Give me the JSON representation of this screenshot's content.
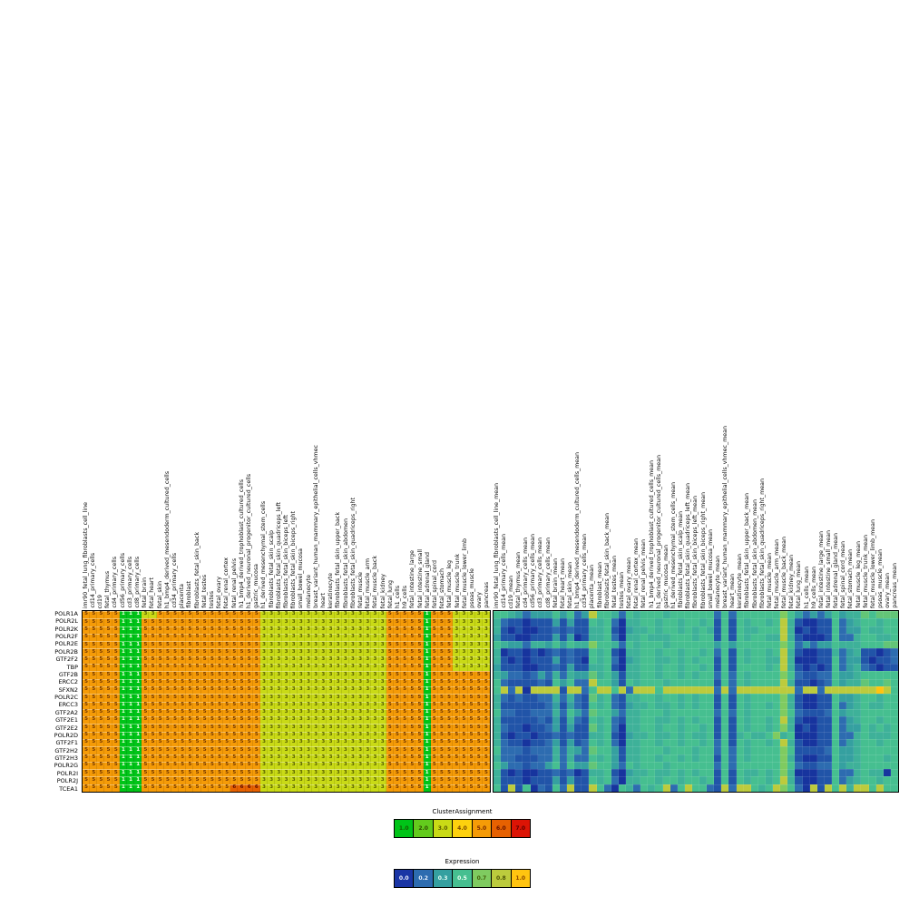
{
  "chart_data": {
    "type": "heatmap",
    "genes": [
      "POLR1A",
      "POLR2L",
      "POLR2K",
      "POLR2F",
      "POLR2E",
      "POLR2B",
      "GTF2F2",
      "TBP",
      "GTF2B",
      "ERCC2",
      "SFXN2",
      "POLR2C",
      "ERCC3",
      "GTF2A2",
      "GTF2E1",
      "GTF2E2",
      "POLR2D",
      "GTF2F1",
      "GTF2H2",
      "GTF2H3",
      "POLR2G",
      "POLR2I",
      "POLR2J",
      "TCEA1"
    ],
    "samples": [
      "imr90_fetal_lung_fibroblasts_cell_line",
      "cd14_primary_cells",
      "cd19",
      "fetal_thymus",
      "cd4_primary_cells",
      "cd56_primary_cells",
      "cd3_primary_cells",
      "cd8_primary_cells",
      "fetal_brain",
      "fetal_heart",
      "fetal_skin",
      "h1_bmp4_derived_mesendoderm_cultured_cells",
      "cd34_primary_cells",
      "placenta",
      "fibroblast",
      "fibroblasts_fetal_skin_back",
      "fetal_testes",
      "testes",
      "fetal_ovary",
      "fetal_renal_cortex",
      "fetal_renal_pelvis",
      "h1_bmp4_derived_trophoblast_cultured_cells",
      "h1_derived_neuronal_progenitor_cultured_cells",
      "gastric_mucosa",
      "h1_derived_mesenchymal_stem_cells",
      "fibroblasts_fetal_skin_scalp",
      "fibroblasts_fetal_skin_quadriceps_left",
      "fibroblasts_fetal_skin_biceps_left",
      "fibroblasts_fetal_skin_biceps_right",
      "small_bowel_mucosa",
      "melanocyte",
      "breast_variant_human_mammary_epithelial_cells_vhmec",
      "heart",
      "keratinocyte",
      "fibroblasts_fetal_skin_upper_back",
      "fibroblasts_fetal_skin_abdomen",
      "fibroblasts_fetal_skin_quadriceps_right",
      "fetal_muscle",
      "fetal_muscle_arm",
      "fetal_muscle_back",
      "fetal_kidney",
      "fetal_lung",
      "h1_cells",
      "h9_cells",
      "fetal_intestine_large",
      "fetal_intestine_small",
      "fetal_adrenal_gland",
      "fetal_spinal_cord",
      "fetal_stomach",
      "fetal_muscle_leg",
      "fetal_muscle_trunk",
      "fetal_muscle_lower_limb",
      "psoas_muscle",
      "ovary",
      "pancreas"
    ],
    "right_label_suffix": "_mean",
    "cluster_legend": {
      "title": "ClusterAssignment",
      "values": [
        "1.0",
        "2.0",
        "3.0",
        "4.0",
        "5.0",
        "6.0",
        "7.0"
      ],
      "colors": [
        "#00c418",
        "#63cb1d",
        "#c9da16",
        "#fdd10e",
        "#f59b07",
        "#e66101",
        "#dc1405"
      ],
      "text_colors": [
        "#145c00",
        "#2f4d00",
        "#5a5a00",
        "#7a4a00",
        "#7a2a00",
        "#641200",
        "#5c0000"
      ]
    },
    "expression_legend": {
      "title": "Expression",
      "values": [
        "0.0",
        "0.2",
        "0.3",
        "0.5",
        "0.7",
        "0.8",
        "1.0"
      ],
      "colors": [
        "#1a35a5",
        "#2d6cb0",
        "#35a0a0",
        "#46bf90",
        "#7fcb60",
        "#bccb3d",
        "#ffc410"
      ],
      "text_colors": [
        "#eef2ff",
        "#eaf2ff",
        "#e8fff6",
        "#ecfff4",
        "#43610a",
        "#4d5407",
        "#8a4800"
      ]
    },
    "cluster_colors": {
      "1": "#00c418",
      "2": "#63cb1d",
      "3": "#c9da16",
      "4": "#fdd10e",
      "5": "#f59b07",
      "6": "#e66101",
      "7": "#dc1405"
    },
    "cluster_text_colors": {
      "1": "#f2ffe8",
      "2": "#2f4d00",
      "3": "#565e00",
      "4": "#6e4a00",
      "5": "#6f3500",
      "6": "#5c0a00",
      "7": "#3c0000"
    },
    "cluster_matrix": [
      "5555511133555555555555553333333333333333355555155533333",
      "5555511155555555555555553333333333333333355555155533333",
      "5555511155555555555555553333333333333333355555155533333",
      "5555511155555555555555553333333333333333355555155533333",
      "5555511155555555555555553333333333333333355555155533333",
      "5555511155555555555555553333333333333333355555155533333",
      "5555511155555555555555553333333333333333355555155533333",
      "5555511155555555555555553333333333333333355555155533333",
      "5555511155555555555555553333333333333333355555155555555",
      "5555511155555555555555553333333333333333355555155555555",
      "5555511155555555555555553333333333333333355555155555555",
      "5555511155555555555555553333333333333333355555155555555",
      "5555511155555555555555553333333333333333355555155555555",
      "5555511155555555555555553333333333333333355555155555555",
      "5555511155555555555555553333333333333333355555155555555",
      "5555511155555555555555553333333333333333355555155555555",
      "5555511155555555555555553333333333333333355555155555555",
      "5555511155555555555555553333333333333333355555155555555",
      "5555511155555555555555553333333333333333355555155555555",
      "5555511155555555555555553333333333333333355555155555555",
      "5555511155555555555555553333333333333333355555155555555",
      "5555511155555555555555553333333333333333355555155555555",
      "5555511155555555555555553333333333333333355555155555555",
      "5555511155555555555566663333333333333333355555155555555"
    ],
    "expression_encoding": "one char per cell: 0-9 = value/10, A = 1.0",
    "expression_scale": {
      "0": "#17349e",
      "1": "#2154a8",
      "2": "#2d6cb0",
      "3": "#35a0a0",
      "4": "#3eb199",
      "5": "#46bf90",
      "6": "#63c577",
      "7": "#7fcb60",
      "8": "#bccb3d",
      "9": "#dfc628",
      "A": "#ffc410"
    },
    "expression_matrix": [
      "5543233353523855425455545555552525555557532323534465666",
      "4211011131311545204455455455451515455458410011523455455",
      "4101001121211445103445455454541515445558401011523354455",
      "3110011131301445204454445554551515455448410001522455445",
      "5433244353544755425455545555553535555557523233544455566",
      "4011010121211545104455455455452515455458410011423411012",
      "4101011131210545203455445454551515455448400011523310112",
      "3111001121311445104455455455451515555458410101523421011",
      "4322123242433645314455455454552525455557521122533455555",
      "5211112153522855315455545555551525455558411012534465565",
      "5828088881882588582888588888882828888888828828888888A8",
      "4212112242421645214455455454551515455557410011533455455",
      "4111111231321545213445445454551515455457410011523454455",
      "5221122242532655324455545555552525455557521112534455555",
      "4111112131421545214455445454551515455458410011523455455",
      "4211011231311645204455455455451515455457401011523354545",
      "4101101121211445103445445454451514544574500011522454445",
      "4211011231312545204455455455452515455458410011523455455",
      "5222122242432655314455545554552525455557511112533455555",
      "4221112242422545314455455454551525455557410011533455545",
      "5322122352533655325455545555552525555557521122534455555",
      "4101001121201445103445445454551515445457400011522454405",
      "4111011131311545204455455455451515455458410011523455455",
      "5181502152811852054254582585521828854587520818584885855"
    ]
  }
}
